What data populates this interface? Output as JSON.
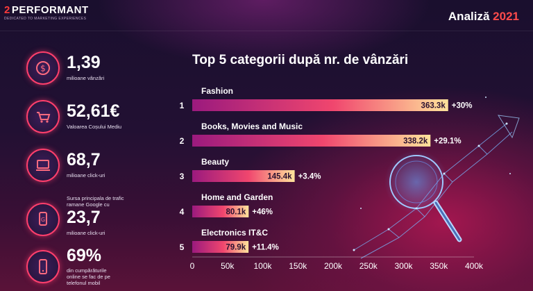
{
  "header": {
    "logo_mark": "2",
    "logo_name": "PERFORMANT",
    "logo_tagline": "DEDICATED TO MARKETING EXPERIENCES",
    "title_word": "Analiză",
    "title_year": "2021"
  },
  "stats": [
    {
      "value": "1,39",
      "label": "milioane vânzări",
      "icon": "dollar-circle-icon"
    },
    {
      "value": "52,61€",
      "label": "Valoarea Coșului Mediu",
      "icon": "shopping-cart-icon"
    },
    {
      "value": "68,7",
      "label": "milioane click-uri",
      "icon": "laptop-icon"
    },
    {
      "value": "23,7",
      "label_top_1": "Sursa principala de trafic",
      "label_top_2": "ramane Google cu",
      "label": "milioane click-uri",
      "icon": "google-search-icon"
    },
    {
      "value": "69%",
      "label_1": "din cumpărăturile",
      "label_2": "online se fac de pe",
      "label_3": "telefonul mobil",
      "icon": "mobile-phone-icon"
    }
  ],
  "chart_data": {
    "type": "bar",
    "orientation": "horizontal",
    "title": "Top 5 categorii după nr. de vânzări",
    "ranks": [
      "1",
      "2",
      "3",
      "4",
      "5"
    ],
    "categories": [
      "Fashion",
      "Books, Movies and Music",
      "Beauty",
      "Home and Garden",
      "Electronics IT&C"
    ],
    "values": [
      363.3,
      338.2,
      145.4,
      80.1,
      79.9
    ],
    "value_labels": [
      "363.3k",
      "338.2k",
      "145.4k",
      "80.1k",
      "79.9k"
    ],
    "growth_labels": [
      "+30%",
      "+29.1%",
      "+3.4%",
      "+46%",
      "+11.4%"
    ],
    "xlim": [
      0,
      400
    ],
    "x_ticks": [
      "0",
      "50k",
      "100k",
      "150k",
      "200k",
      "250k",
      "300k",
      "350k",
      "400k"
    ],
    "grid": false,
    "bar_gradient": [
      "#9b1a7e",
      "#f0466e",
      "#ffe39b"
    ]
  }
}
